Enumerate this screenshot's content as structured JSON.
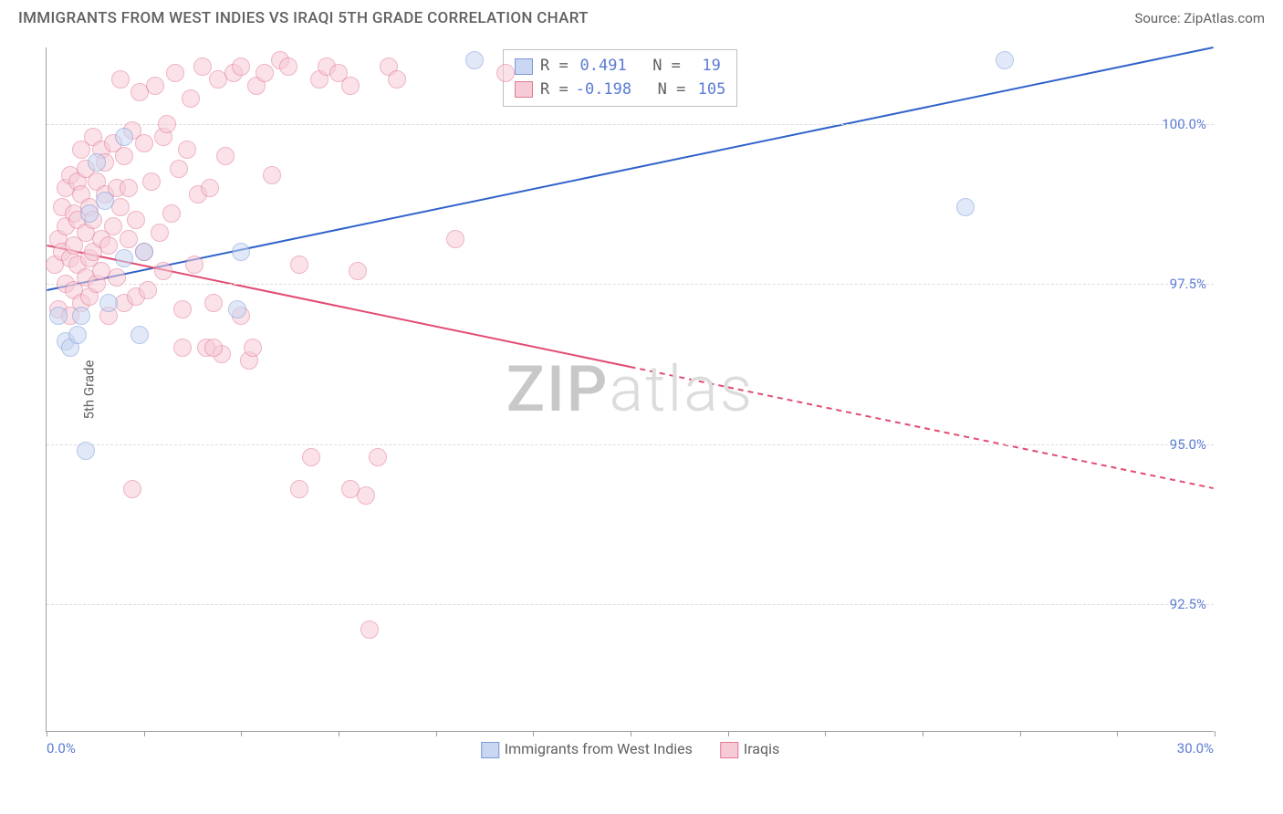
{
  "header": {
    "title": "IMMIGRANTS FROM WEST INDIES VS IRAQI 5TH GRADE CORRELATION CHART",
    "source": "Source: ZipAtlas.com"
  },
  "axes": {
    "y_label": "5th Grade",
    "x_min_label": "0.0%",
    "x_max_label": "30.0%",
    "y_ticks": [
      {
        "value": 92.5,
        "label": "92.5%"
      },
      {
        "value": 95.0,
        "label": "95.0%"
      },
      {
        "value": 97.5,
        "label": "97.5%"
      },
      {
        "value": 100.0,
        "label": "100.0%"
      }
    ],
    "x_range": [
      0,
      30
    ],
    "y_range": [
      90.5,
      101.2
    ],
    "x_tick_step": 2.5
  },
  "styling": {
    "background_color": "#ffffff",
    "grid_color": "#dcdcdc",
    "axis_color": "#9e9e9e",
    "label_color": "#616161",
    "value_color": "#5b7bd5",
    "title_fontsize": 17,
    "tick_fontsize": 15,
    "marker_radius": 10,
    "marker_opacity": 0.55,
    "line_width": 2
  },
  "watermark": {
    "bold": "ZIP",
    "light": "atlas"
  },
  "series": [
    {
      "name": "Immigrants from West Indies",
      "color_fill": "#c9d7f2",
      "color_stroke": "#7a9ad8",
      "line_color": "#2f62c9",
      "stats": {
        "R": "0.491",
        "N": "19"
      },
      "trend": {
        "x1": 0,
        "y1": 97.4,
        "x2": 30,
        "y2": 101.2,
        "solid_until_x": 30
      },
      "points": [
        [
          0.3,
          97.0
        ],
        [
          0.5,
          96.6
        ],
        [
          0.6,
          96.5
        ],
        [
          0.8,
          96.7
        ],
        [
          0.9,
          97.0
        ],
        [
          1.1,
          98.6
        ],
        [
          1.3,
          99.4
        ],
        [
          1.5,
          98.8
        ],
        [
          1.6,
          97.2
        ],
        [
          2.0,
          97.9
        ],
        [
          2.0,
          99.8
        ],
        [
          2.4,
          96.7
        ],
        [
          2.5,
          98.0
        ],
        [
          4.9,
          97.1
        ],
        [
          5.0,
          98.0
        ],
        [
          1.0,
          94.9
        ],
        [
          11.0,
          101.0
        ],
        [
          24.6,
          101.0
        ],
        [
          23.6,
          98.7
        ]
      ]
    },
    {
      "name": "Iraqis",
      "color_fill": "#f6cbd6",
      "color_stroke": "#e37893",
      "line_color": "#e14c72",
      "stats": {
        "R": "-0.198",
        "N": "105"
      },
      "trend": {
        "x1": 0,
        "y1": 98.1,
        "x2": 30,
        "y2": 94.3,
        "solid_until_x": 15
      },
      "points": [
        [
          0.2,
          97.8
        ],
        [
          0.3,
          98.2
        ],
        [
          0.3,
          97.1
        ],
        [
          0.4,
          98.7
        ],
        [
          0.4,
          98.0
        ],
        [
          0.5,
          99.0
        ],
        [
          0.5,
          97.5
        ],
        [
          0.5,
          98.4
        ],
        [
          0.6,
          97.9
        ],
        [
          0.6,
          99.2
        ],
        [
          0.6,
          97.0
        ],
        [
          0.7,
          98.6
        ],
        [
          0.7,
          97.4
        ],
        [
          0.7,
          98.1
        ],
        [
          0.8,
          99.1
        ],
        [
          0.8,
          97.8
        ],
        [
          0.8,
          98.5
        ],
        [
          0.9,
          97.2
        ],
        [
          0.9,
          98.9
        ],
        [
          0.9,
          99.6
        ],
        [
          1.0,
          97.6
        ],
        [
          1.0,
          98.3
        ],
        [
          1.0,
          99.3
        ],
        [
          1.1,
          97.9
        ],
        [
          1.1,
          98.7
        ],
        [
          1.1,
          97.3
        ],
        [
          1.2,
          99.8
        ],
        [
          1.2,
          98.0
        ],
        [
          1.2,
          98.5
        ],
        [
          1.3,
          97.5
        ],
        [
          1.3,
          99.1
        ],
        [
          1.4,
          99.6
        ],
        [
          1.4,
          98.2
        ],
        [
          1.4,
          97.7
        ],
        [
          1.5,
          98.9
        ],
        [
          1.5,
          99.4
        ],
        [
          1.6,
          97.0
        ],
        [
          1.6,
          98.1
        ],
        [
          1.7,
          99.7
        ],
        [
          1.7,
          98.4
        ],
        [
          1.8,
          99.0
        ],
        [
          1.8,
          97.6
        ],
        [
          1.9,
          98.7
        ],
        [
          1.9,
          100.7
        ],
        [
          2.0,
          99.5
        ],
        [
          2.0,
          97.2
        ],
        [
          2.1,
          99.0
        ],
        [
          2.1,
          98.2
        ],
        [
          2.2,
          99.9
        ],
        [
          2.3,
          98.5
        ],
        [
          2.3,
          97.3
        ],
        [
          2.4,
          100.5
        ],
        [
          2.5,
          99.7
        ],
        [
          2.5,
          98.0
        ],
        [
          2.6,
          97.4
        ],
        [
          2.7,
          99.1
        ],
        [
          2.8,
          100.6
        ],
        [
          2.9,
          98.3
        ],
        [
          3.0,
          99.8
        ],
        [
          3.0,
          97.7
        ],
        [
          3.1,
          100.0
        ],
        [
          3.2,
          98.6
        ],
        [
          3.3,
          100.8
        ],
        [
          3.4,
          99.3
        ],
        [
          3.5,
          97.1
        ],
        [
          3.6,
          99.6
        ],
        [
          3.7,
          100.4
        ],
        [
          3.8,
          97.8
        ],
        [
          3.9,
          98.9
        ],
        [
          4.0,
          100.9
        ],
        [
          4.1,
          96.5
        ],
        [
          4.2,
          99.0
        ],
        [
          4.3,
          97.2
        ],
        [
          4.4,
          100.7
        ],
        [
          4.5,
          96.4
        ],
        [
          4.6,
          99.5
        ],
        [
          4.8,
          100.8
        ],
        [
          5.0,
          97.0
        ],
        [
          5.0,
          100.9
        ],
        [
          5.2,
          96.3
        ],
        [
          5.4,
          100.6
        ],
        [
          5.6,
          100.8
        ],
        [
          5.8,
          99.2
        ],
        [
          6.0,
          101.0
        ],
        [
          6.2,
          100.9
        ],
        [
          6.5,
          97.8
        ],
        [
          6.8,
          94.8
        ],
        [
          7.0,
          100.7
        ],
        [
          7.2,
          100.9
        ],
        [
          7.5,
          100.8
        ],
        [
          7.8,
          100.6
        ],
        [
          8.0,
          97.7
        ],
        [
          8.2,
          94.2
        ],
        [
          8.5,
          94.8
        ],
        [
          8.8,
          100.9
        ],
        [
          9.0,
          100.7
        ],
        [
          3.5,
          96.5
        ],
        [
          2.2,
          94.3
        ],
        [
          6.5,
          94.3
        ],
        [
          7.8,
          94.3
        ],
        [
          10.5,
          98.2
        ],
        [
          11.8,
          100.8
        ],
        [
          8.3,
          92.1
        ],
        [
          5.3,
          96.5
        ],
        [
          4.3,
          96.5
        ]
      ]
    }
  ],
  "bottom_legend": [
    {
      "label": "Immigrants from West Indies",
      "fill": "#c9d7f2",
      "stroke": "#7a9ad8"
    },
    {
      "label": "Iraqis",
      "fill": "#f6cbd6",
      "stroke": "#e37893"
    }
  ]
}
